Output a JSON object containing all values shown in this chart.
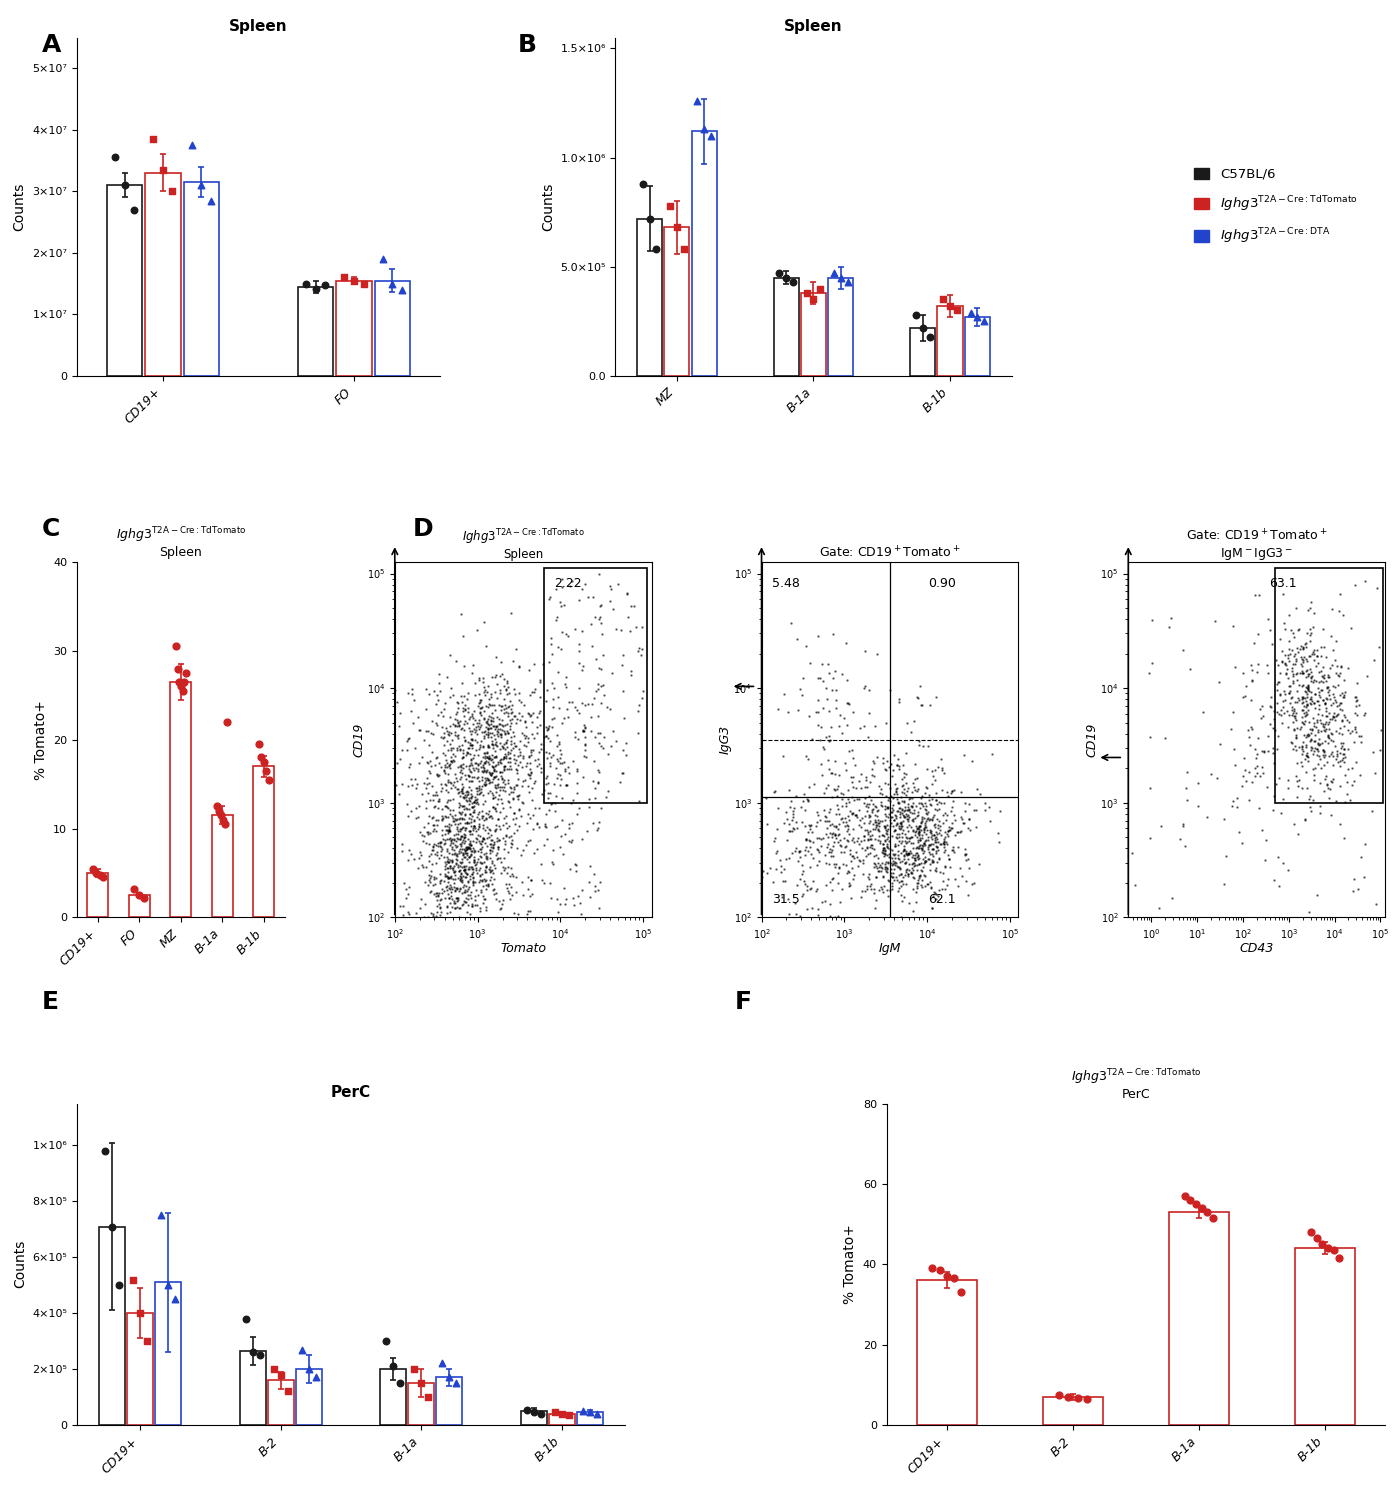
{
  "panel_A": {
    "title": "Spleen",
    "ylabel": "Counts",
    "categories": [
      "CD19+",
      "FO"
    ],
    "bar_means": {
      "black": [
        31000000.0,
        14500000.0
      ],
      "red": [
        33000000.0,
        15500000.0
      ],
      "blue": [
        31500000.0,
        15500000.0
      ]
    },
    "bar_errors": {
      "black": [
        2000000.0,
        1000000.0
      ],
      "red": [
        3000000.0,
        500000.0
      ],
      "blue": [
        2500000.0,
        1800000.0
      ]
    },
    "dots": {
      "black_CD19": [
        35500000.0,
        31000000.0,
        27000000.0
      ],
      "red_CD19": [
        38500000.0,
        33500000.0,
        30000000.0
      ],
      "blue_CD19": [
        37500000.0,
        31000000.0,
        28500000.0
      ],
      "black_FO": [
        15000000.0,
        14200000.0,
        14800000.0
      ],
      "red_FO": [
        16000000.0,
        15500000.0,
        15000000.0
      ],
      "blue_FO": [
        19000000.0,
        15000000.0,
        14000000.0
      ]
    },
    "ylim": [
      0,
      55000000.0
    ],
    "yticks": [
      0,
      10000000.0,
      20000000.0,
      30000000.0,
      40000000.0,
      50000000.0
    ],
    "ytick_labels": [
      "0",
      "1×10⁷",
      "2×10⁷",
      "3×10⁷",
      "4×10⁷",
      "5×10⁷"
    ]
  },
  "panel_B": {
    "title": "Spleen",
    "ylabel": "Counts",
    "categories": [
      "MZ",
      "B-1a",
      "B-1b"
    ],
    "bar_means": {
      "black": [
        720000.0,
        450000.0,
        220000.0
      ],
      "red": [
        680000.0,
        380000.0,
        320000.0
      ],
      "blue": [
        1120000.0,
        450000.0,
        270000.0
      ]
    },
    "bar_errors": {
      "black": [
        150000.0,
        30000.0,
        60000.0
      ],
      "red": [
        120000.0,
        50000.0,
        50000.0
      ],
      "blue": [
        150000.0,
        50000.0,
        40000.0
      ]
    },
    "dots": {
      "black_MZ": [
        880000.0,
        720000.0,
        580000.0
      ],
      "red_MZ": [
        780000.0,
        680000.0,
        580000.0
      ],
      "blue_MZ": [
        1260000.0,
        1130000.0,
        1100000.0
      ],
      "black_B1a": [
        470000.0,
        450000.0,
        430000.0
      ],
      "red_B1a": [
        380000.0,
        350000.0,
        400000.0
      ],
      "blue_B1a": [
        470000.0,
        450000.0,
        430000.0
      ],
      "black_B1b": [
        280000.0,
        220000.0,
        180000.0
      ],
      "red_B1b": [
        350000.0,
        320000.0,
        300000.0
      ],
      "blue_B1b": [
        290000.0,
        270000.0,
        250000.0
      ]
    },
    "ylim": [
      0,
      1550000.0
    ],
    "yticks": [
      0,
      500000.0,
      1000000.0,
      1500000.0
    ],
    "ytick_labels": [
      "0.0",
      "5.0×10⁵",
      "1.0×10⁶",
      "1.5×10⁶"
    ]
  },
  "panel_C": {
    "ylabel": "% Tomato+",
    "categories": [
      "CD19+",
      "FO",
      "MZ",
      "B-1a",
      "B-1b"
    ],
    "bar_means": [
      5.0,
      2.5,
      26.5,
      11.5,
      17.0
    ],
    "bar_errors": [
      0.4,
      0.2,
      2.0,
      1.0,
      1.2
    ],
    "dots": {
      "CD19+": [
        5.5,
        5.0,
        4.8,
        4.5
      ],
      "FO": [
        3.2,
        2.5,
        2.2
      ],
      "MZ": [
        30.5,
        28.0,
        26.5,
        26.0,
        25.5,
        26.5,
        27.5
      ],
      "B-1a": [
        12.5,
        12.0,
        11.5,
        11.0,
        10.5,
        22.0
      ],
      "B-1b": [
        19.5,
        18.0,
        17.5,
        16.5,
        15.5
      ]
    },
    "ylim": [
      0,
      40
    ],
    "yticks": [
      0,
      10,
      20,
      30,
      40
    ]
  },
  "panel_E": {
    "title": "PerC",
    "ylabel": "Counts",
    "categories": [
      "CD19+",
      "B-2",
      "B-1a",
      "B-1b"
    ],
    "bar_means": {
      "black": [
        710000.0,
        265000.0,
        200000.0,
        50000.0
      ],
      "red": [
        400000.0,
        160000.0,
        150000.0,
        40000.0
      ],
      "blue": [
        510000.0,
        200000.0,
        170000.0,
        45000.0
      ]
    },
    "bar_errors": {
      "black": [
        300000.0,
        50000.0,
        40000.0,
        10000.0
      ],
      "red": [
        90000.0,
        30000.0,
        50000.0,
        8000.0
      ],
      "blue": [
        250000.0,
        50000.0,
        30000.0,
        10000.0
      ]
    },
    "dots": {
      "black_CD19": [
        980000.0,
        710000.0,
        500000.0
      ],
      "red_CD19": [
        520000.0,
        400000.0,
        300000.0
      ],
      "blue_CD19": [
        750000.0,
        500000.0,
        450000.0
      ],
      "black_B2": [
        380000.0,
        260000.0,
        250000.0
      ],
      "red_B2": [
        200000.0,
        180000.0,
        120000.0
      ],
      "blue_B2": [
        270000.0,
        200000.0,
        170000.0
      ],
      "black_B1a": [
        300000.0,
        210000.0,
        150000.0
      ],
      "red_B1a": [
        200000.0,
        150000.0,
        100000.0
      ],
      "blue_B1a": [
        220000.0,
        170000.0,
        150000.0
      ],
      "black_B1b": [
        55000.0,
        45000.0,
        40000.0
      ],
      "red_B1b": [
        45000.0,
        40000.0,
        35000.0
      ],
      "blue_B1b": [
        50000.0,
        45000.0,
        40000.0
      ]
    },
    "ylim": [
      0,
      1150000.0
    ],
    "yticks": [
      0,
      200000.0,
      400000.0,
      600000.0,
      800000.0,
      1000000.0
    ],
    "ytick_labels": [
      "0",
      "2×10⁵",
      "4×10⁵",
      "6×10⁵",
      "8×10⁵",
      "1×10⁶"
    ]
  },
  "panel_F": {
    "ylabel": "% Tomato+",
    "categories": [
      "CD19+",
      "B-2",
      "B-1a",
      "B-1b"
    ],
    "bar_means": [
      36.0,
      7.0,
      53.0,
      44.0
    ],
    "bar_errors": [
      2.0,
      0.8,
      1.5,
      1.5
    ],
    "dots": {
      "CD19+": [
        39.0,
        38.5,
        37.0,
        36.5,
        33.0
      ],
      "B-2": [
        7.5,
        7.0,
        6.8,
        6.5
      ],
      "B-1a": [
        57.0,
        56.0,
        55.0,
        54.0,
        53.0,
        51.5
      ],
      "B-1b": [
        48.0,
        46.5,
        45.0,
        44.0,
        43.5,
        41.5
      ]
    },
    "ylim": [
      0,
      80
    ],
    "yticks": [
      0,
      20,
      40,
      60,
      80
    ]
  },
  "colors": {
    "black": "#1a1a1a",
    "red": "#cc2222",
    "blue": "#2244cc"
  }
}
